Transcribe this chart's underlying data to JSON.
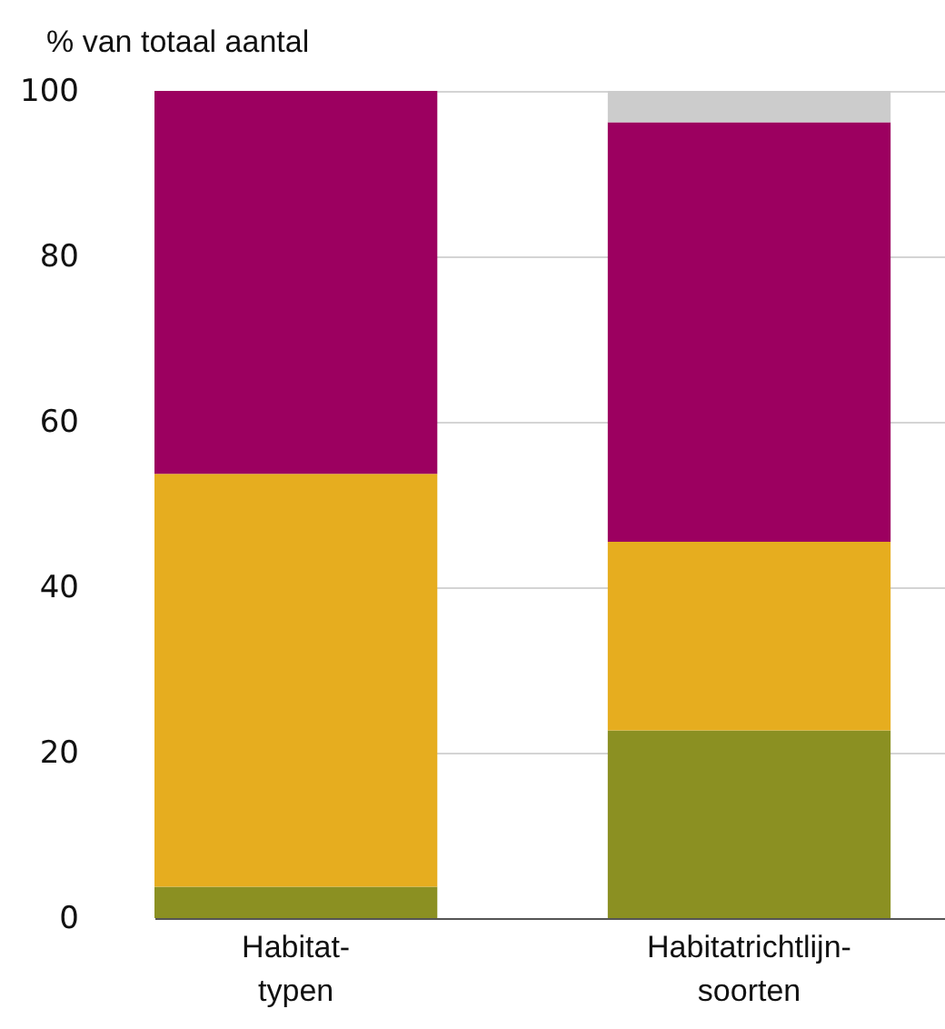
{
  "chart_data": {
    "type": "bar",
    "stacked": true,
    "ylabel": "% van totaal aantal",
    "categories": [
      "Habitat-\ntypen",
      "Habitatrichtlijn-\nsoorten"
    ],
    "series": [
      {
        "color": "#8b9022",
        "values": [
          3.8,
          22.7
        ]
      },
      {
        "color": "#e6ad1f",
        "values": [
          49.9,
          22.8
        ]
      },
      {
        "color": "#9c0060",
        "values": [
          46.3,
          50.7
        ]
      },
      {
        "color": "#cccccc",
        "values": [
          0,
          3.8
        ]
      }
    ],
    "ylim": [
      0,
      100
    ],
    "yticks": [
      0,
      20,
      40,
      60,
      80,
      100
    ],
    "grid": "y",
    "legend": false
  }
}
